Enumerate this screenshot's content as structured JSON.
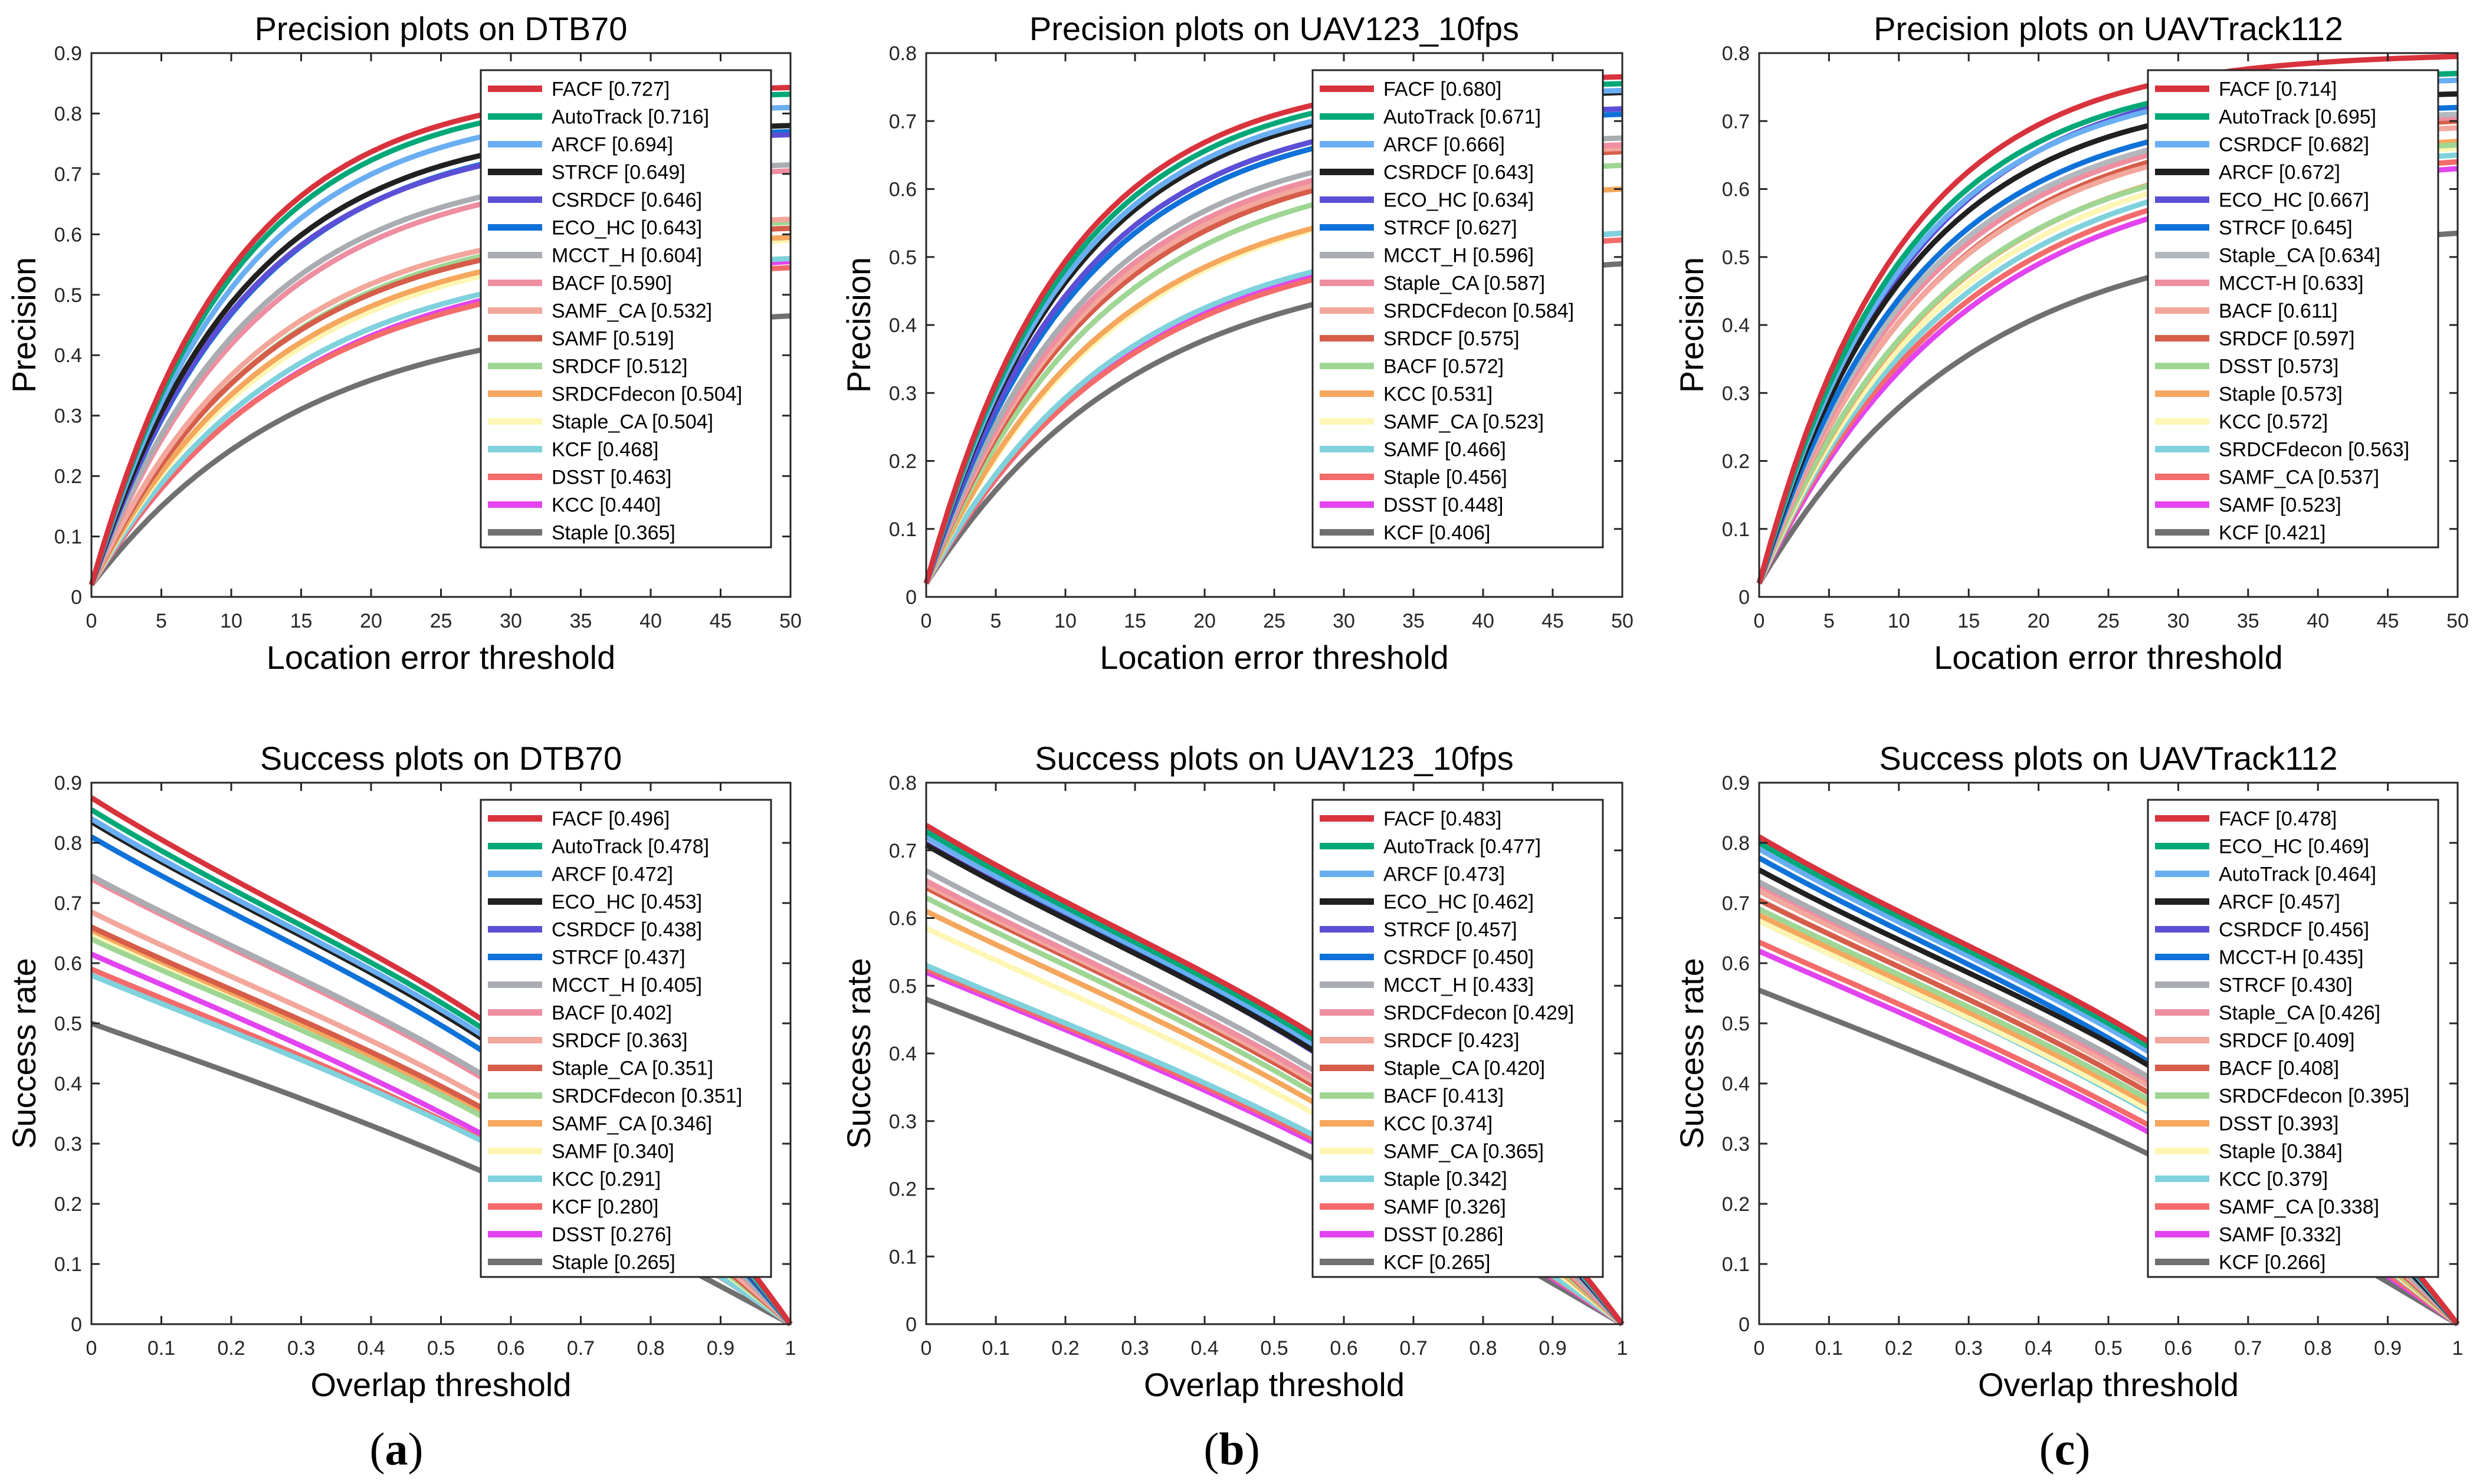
{
  "palette": {
    "red": "#d8333d",
    "teal": "#00a878",
    "lightblue": "#6aaef2",
    "black": "#202020",
    "purple": "#5b4fd6",
    "blue": "#0f72d8",
    "grey": "#a9adb2",
    "pink": "#ee8ea0",
    "salmon": "#f3a79c",
    "rust": "#d65d49",
    "lightgreen": "#9fd694",
    "orange": "#f5a75e",
    "yellow": "#fdf6b4",
    "cyan": "#7fd1dc",
    "coral": "#f36b6b",
    "magenta": "#e244f0",
    "darkgrey": "#707070",
    "silver": "#b2b8bd"
  },
  "captions": [
    {
      "paren_open": "(",
      "letter": "a",
      "paren_close": ")"
    },
    {
      "paren_open": "(",
      "letter": "b",
      "paren_close": ")"
    },
    {
      "paren_open": "(",
      "letter": "c",
      "paren_close": ")"
    }
  ],
  "chart_data": [
    {
      "type": "line",
      "title": "Precision plots on DTB70",
      "xlabel": "Location error threshold",
      "ylabel": "Precision",
      "xlim": [
        0,
        50
      ],
      "ylim": [
        0,
        0.9
      ],
      "xticks": [
        "0",
        "5",
        "10",
        "15",
        "20",
        "25",
        "30",
        "35",
        "40",
        "45",
        "50"
      ],
      "yticks": [
        "0",
        "0.1",
        "0.2",
        "0.3",
        "0.4",
        "0.5",
        "0.6",
        "0.7",
        "0.8",
        "0.9"
      ],
      "legend_position": "top-right",
      "series": [
        {
          "name": "FACF [0.727]",
          "color": "red",
          "y50": 0.843
        },
        {
          "name": "AutoTrack [0.716]",
          "color": "teal",
          "y50": 0.832
        },
        {
          "name": "ARCF [0.694]",
          "color": "lightblue",
          "y50": 0.81
        },
        {
          "name": "STRCF [0.649]",
          "color": "black",
          "y50": 0.78
        },
        {
          "name": "CSRDCF [0.646]",
          "color": "purple",
          "y50": 0.765
        },
        {
          "name": "ECO_HC [0.643]",
          "color": "blue",
          "y50": 0.77
        },
        {
          "name": "MCCT_H [0.604]",
          "color": "grey",
          "y50": 0.715
        },
        {
          "name": "BACF [0.590]",
          "color": "pink",
          "y50": 0.705
        },
        {
          "name": "SAMF_CA [0.532]",
          "color": "salmon",
          "y50": 0.625
        },
        {
          "name": "SAMF [0.519]",
          "color": "rust",
          "y50": 0.61
        },
        {
          "name": "SRDCF [0.512]",
          "color": "lightgreen",
          "y50": 0.62
        },
        {
          "name": "SRDCFdecon [0.504]",
          "color": "orange",
          "y50": 0.595
        },
        {
          "name": "Staple_CA [0.504]",
          "color": "yellow",
          "y50": 0.59
        },
        {
          "name": "KCF [0.468]",
          "color": "cyan",
          "y50": 0.56
        },
        {
          "name": "DSST [0.463]",
          "color": "coral",
          "y50": 0.545
        },
        {
          "name": "KCC [0.440]",
          "color": "magenta",
          "y50": 0.555
        },
        {
          "name": "Staple [0.365]",
          "color": "darkgrey",
          "y50": 0.465
        }
      ]
    },
    {
      "type": "line",
      "title": "Precision plots on UAV123_10fps",
      "xlabel": "Location error threshold",
      "ylabel": "Precision",
      "xlim": [
        0,
        50
      ],
      "ylim": [
        0,
        0.8
      ],
      "xticks": [
        "0",
        "5",
        "10",
        "15",
        "20",
        "25",
        "30",
        "35",
        "40",
        "45",
        "50"
      ],
      "yticks": [
        "0",
        "0.1",
        "0.2",
        "0.3",
        "0.4",
        "0.5",
        "0.6",
        "0.7",
        "0.8"
      ],
      "legend_position": "top-right",
      "series": [
        {
          "name": "FACF [0.680]",
          "color": "red",
          "y50": 0.765
        },
        {
          "name": "AutoTrack [0.671]",
          "color": "teal",
          "y50": 0.755
        },
        {
          "name": "ARCF [0.666]",
          "color": "lightblue",
          "y50": 0.745
        },
        {
          "name": "CSRDCF [0.643]",
          "color": "black",
          "y50": 0.742
        },
        {
          "name": "ECO_HC [0.634]",
          "color": "purple",
          "y50": 0.718
        },
        {
          "name": "STRCF [0.627]",
          "color": "blue",
          "y50": 0.71
        },
        {
          "name": "MCCT_H [0.596]",
          "color": "grey",
          "y50": 0.675
        },
        {
          "name": "Staple_CA [0.587]",
          "color": "pink",
          "y50": 0.665
        },
        {
          "name": "SRDCFdecon [0.584]",
          "color": "salmon",
          "y50": 0.66
        },
        {
          "name": "SRDCF [0.575]",
          "color": "rust",
          "y50": 0.655
        },
        {
          "name": "BACF [0.572]",
          "color": "lightgreen",
          "y50": 0.635
        },
        {
          "name": "KCC [0.531]",
          "color": "orange",
          "y50": 0.6
        },
        {
          "name": "SAMF_CA [0.523]",
          "color": "yellow",
          "y50": 0.6
        },
        {
          "name": "SAMF [0.466]",
          "color": "cyan",
          "y50": 0.535
        },
        {
          "name": "Staple [0.456]",
          "color": "coral",
          "y50": 0.525
        },
        {
          "name": "DSST [0.448]",
          "color": "magenta",
          "y50": 0.535
        },
        {
          "name": "KCF [0.406]",
          "color": "darkgrey",
          "y50": 0.49
        }
      ]
    },
    {
      "type": "line",
      "title": "Precision plots on UAVTrack112",
      "xlabel": "Location error threshold",
      "ylabel": "Precision",
      "xlim": [
        0,
        50
      ],
      "ylim": [
        0,
        0.8
      ],
      "xticks": [
        "0",
        "5",
        "10",
        "15",
        "20",
        "25",
        "30",
        "35",
        "40",
        "45",
        "50"
      ],
      "yticks": [
        "0",
        "0.1",
        "0.2",
        "0.3",
        "0.4",
        "0.5",
        "0.6",
        "0.7",
        "0.8"
      ],
      "legend_position": "top-right",
      "series": [
        {
          "name": "FACF [0.714]",
          "color": "red",
          "y50": 0.795
        },
        {
          "name": "AutoTrack [0.695]",
          "color": "teal",
          "y50": 0.77
        },
        {
          "name": "CSRDCF [0.682]",
          "color": "lightblue",
          "y50": 0.76
        },
        {
          "name": "ARCF [0.672]",
          "color": "black",
          "y50": 0.74
        },
        {
          "name": "ECO_HC [0.667]",
          "color": "purple",
          "y50": 0.77
        },
        {
          "name": "STRCF [0.645]",
          "color": "blue",
          "y50": 0.72
        },
        {
          "name": "Staple_CA [0.634]",
          "color": "silver",
          "y50": 0.71
        },
        {
          "name": "MCCT-H [0.633]",
          "color": "pink",
          "y50": 0.705
        },
        {
          "name": "BACF [0.611]",
          "color": "salmon",
          "y50": 0.69
        },
        {
          "name": "SRDCF [0.597]",
          "color": "rust",
          "y50": 0.7
        },
        {
          "name": "DSST [0.573]",
          "color": "lightgreen",
          "y50": 0.665
        },
        {
          "name": "Staple [0.573]",
          "color": "orange",
          "y50": 0.67
        },
        {
          "name": "KCC [0.572]",
          "color": "yellow",
          "y50": 0.66
        },
        {
          "name": "SRDCFdecon [0.563]",
          "color": "cyan",
          "y50": 0.65
        },
        {
          "name": "SAMF_CA [0.537]",
          "color": "coral",
          "y50": 0.64
        },
        {
          "name": "SAMF [0.523]",
          "color": "magenta",
          "y50": 0.63
        },
        {
          "name": "KCF [0.421]",
          "color": "darkgrey",
          "y50": 0.535
        }
      ]
    },
    {
      "type": "line",
      "title": "Success plots on DTB70",
      "xlabel": "Overlap threshold",
      "ylabel": "Success rate",
      "xlim": [
        0,
        1
      ],
      "ylim": [
        0,
        0.9
      ],
      "xticks": [
        "0",
        "0.1",
        "0.2",
        "0.3",
        "0.4",
        "0.5",
        "0.6",
        "0.7",
        "0.8",
        "0.9",
        "1"
      ],
      "yticks": [
        "0",
        "0.1",
        "0.2",
        "0.3",
        "0.4",
        "0.5",
        "0.6",
        "0.7",
        "0.8",
        "0.9"
      ],
      "legend_position": "top-right",
      "series": [
        {
          "name": "FACF [0.496]",
          "color": "red",
          "y0": 0.875
        },
        {
          "name": "AutoTrack [0.478]",
          "color": "teal",
          "y0": 0.855
        },
        {
          "name": "ARCF [0.472]",
          "color": "lightblue",
          "y0": 0.84
        },
        {
          "name": "ECO_HC [0.453]",
          "color": "black",
          "y0": 0.835
        },
        {
          "name": "CSRDCF [0.438]",
          "color": "purple",
          "y0": 0.84
        },
        {
          "name": "STRCF [0.437]",
          "color": "blue",
          "y0": 0.81
        },
        {
          "name": "MCCT_H [0.405]",
          "color": "grey",
          "y0": 0.745
        },
        {
          "name": "BACF [0.402]",
          "color": "pink",
          "y0": 0.74
        },
        {
          "name": "SRDCF [0.363]",
          "color": "salmon",
          "y0": 0.685
        },
        {
          "name": "Staple_CA [0.351]",
          "color": "rust",
          "y0": 0.66
        },
        {
          "name": "SRDCFdecon [0.351]",
          "color": "lightgreen",
          "y0": 0.64
        },
        {
          "name": "SAMF_CA [0.346]",
          "color": "orange",
          "y0": 0.655
        },
        {
          "name": "SAMF [0.340]",
          "color": "yellow",
          "y0": 0.65
        },
        {
          "name": "KCC [0.291]",
          "color": "cyan",
          "y0": 0.58
        },
        {
          "name": "KCF [0.280]",
          "color": "coral",
          "y0": 0.59
        },
        {
          "name": "DSST [0.276]",
          "color": "magenta",
          "y0": 0.615
        },
        {
          "name": "Staple [0.265]",
          "color": "darkgrey",
          "y0": 0.5
        }
      ]
    },
    {
      "type": "line",
      "title": "Success plots on UAV123_10fps",
      "xlabel": "Overlap threshold",
      "ylabel": "Success rate",
      "xlim": [
        0,
        1
      ],
      "ylim": [
        0,
        0.8
      ],
      "xticks": [
        "0",
        "0.1",
        "0.2",
        "0.3",
        "0.4",
        "0.5",
        "0.6",
        "0.7",
        "0.8",
        "0.9",
        "1"
      ],
      "yticks": [
        "0",
        "0.1",
        "0.2",
        "0.3",
        "0.4",
        "0.5",
        "0.6",
        "0.7",
        "0.8"
      ],
      "legend_position": "top-right",
      "series": [
        {
          "name": "FACF [0.483]",
          "color": "red",
          "y0": 0.737
        },
        {
          "name": "AutoTrack [0.477]",
          "color": "teal",
          "y0": 0.728
        },
        {
          "name": "ARCF [0.473]",
          "color": "lightblue",
          "y0": 0.72
        },
        {
          "name": "ECO_HC [0.462]",
          "color": "black",
          "y0": 0.708
        },
        {
          "name": "STRCF [0.457]",
          "color": "purple",
          "y0": 0.71
        },
        {
          "name": "CSRDCF [0.450]",
          "color": "blue",
          "y0": 0.72
        },
        {
          "name": "MCCT_H [0.433]",
          "color": "grey",
          "y0": 0.67
        },
        {
          "name": "SRDCFdecon [0.429]",
          "color": "pink",
          "y0": 0.655
        },
        {
          "name": "SRDCF [0.423]",
          "color": "salmon",
          "y0": 0.65
        },
        {
          "name": "Staple_CA [0.420]",
          "color": "rust",
          "y0": 0.645
        },
        {
          "name": "BACF [0.413]",
          "color": "lightgreen",
          "y0": 0.63
        },
        {
          "name": "KCC [0.374]",
          "color": "orange",
          "y0": 0.61
        },
        {
          "name": "SAMF_CA [0.365]",
          "color": "yellow",
          "y0": 0.585
        },
        {
          "name": "Staple [0.342]",
          "color": "cyan",
          "y0": 0.53
        },
        {
          "name": "SAMF [0.326]",
          "color": "coral",
          "y0": 0.525
        },
        {
          "name": "DSST [0.286]",
          "color": "magenta",
          "y0": 0.52
        },
        {
          "name": "KCF [0.265]",
          "color": "darkgrey",
          "y0": 0.48
        }
      ]
    },
    {
      "type": "line",
      "title": "Success plots on UAVTrack112",
      "xlabel": "Overlap threshold",
      "ylabel": "Success rate",
      "xlim": [
        0,
        1
      ],
      "ylim": [
        0,
        0.9
      ],
      "xticks": [
        "0",
        "0.1",
        "0.2",
        "0.3",
        "0.4",
        "0.5",
        "0.6",
        "0.7",
        "0.8",
        "0.9",
        "1"
      ],
      "yticks": [
        "0",
        "0.1",
        "0.2",
        "0.3",
        "0.4",
        "0.5",
        "0.6",
        "0.7",
        "0.8",
        "0.9"
      ],
      "legend_position": "top-right",
      "series": [
        {
          "name": "FACF [0.478]",
          "color": "red",
          "y0": 0.81
        },
        {
          "name": "ECO_HC [0.469]",
          "color": "teal",
          "y0": 0.8
        },
        {
          "name": "AutoTrack [0.464]",
          "color": "lightblue",
          "y0": 0.79
        },
        {
          "name": "ARCF [0.457]",
          "color": "black",
          "y0": 0.755
        },
        {
          "name": "CSRDCF [0.456]",
          "color": "purple",
          "y0": 0.805
        },
        {
          "name": "MCCT-H [0.435]",
          "color": "blue",
          "y0": 0.775
        },
        {
          "name": "STRCF [0.430]",
          "color": "grey",
          "y0": 0.735
        },
        {
          "name": "Staple_CA [0.426]",
          "color": "pink",
          "y0": 0.73
        },
        {
          "name": "SRDCF [0.409]",
          "color": "salmon",
          "y0": 0.72
        },
        {
          "name": "BACF [0.408]",
          "color": "rust",
          "y0": 0.705
        },
        {
          "name": "SRDCFdecon [0.395]",
          "color": "lightgreen",
          "y0": 0.69
        },
        {
          "name": "DSST [0.393]",
          "color": "orange",
          "y0": 0.68
        },
        {
          "name": "Staple [0.384]",
          "color": "yellow",
          "y0": 0.67
        },
        {
          "name": "KCC [0.379]",
          "color": "cyan",
          "y0": 0.67
        },
        {
          "name": "SAMF_CA [0.338]",
          "color": "coral",
          "y0": 0.635
        },
        {
          "name": "SAMF [0.332]",
          "color": "magenta",
          "y0": 0.62
        },
        {
          "name": "KCF [0.266]",
          "color": "darkgrey",
          "y0": 0.555
        }
      ]
    }
  ]
}
